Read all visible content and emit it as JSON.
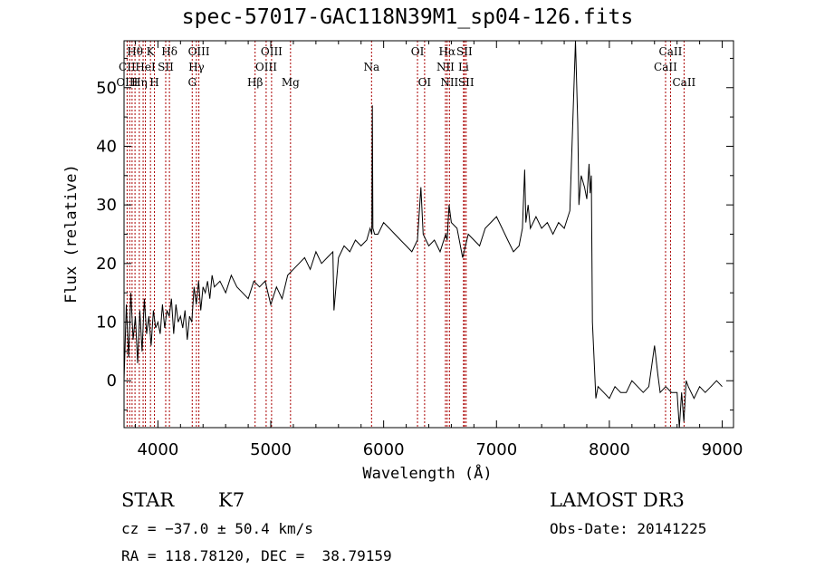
{
  "title": "spec-57017-GAC118N39M1_sp04-126.fits",
  "chart_data": {
    "type": "line",
    "xlabel": "Wavelength (Å)",
    "ylabel": "Flux (relative)",
    "xlim": [
      3700,
      9100
    ],
    "ylim": [
      -8,
      58
    ],
    "xticks": [
      4000,
      5000,
      6000,
      7000,
      8000,
      9000
    ],
    "yticks": [
      0,
      10,
      20,
      30,
      40,
      50
    ],
    "grid": false,
    "series": [
      {
        "x": [
          3700,
          3720,
          3740,
          3760,
          3780,
          3800,
          3820,
          3840,
          3860,
          3880,
          3900,
          3920,
          3940,
          3960,
          3980,
          4000,
          4020,
          4040,
          4060,
          4080,
          4100,
          4120,
          4140,
          4160,
          4180,
          4200,
          4220,
          4240,
          4260,
          4280,
          4300,
          4320,
          4340,
          4360,
          4380,
          4400,
          4420,
          4440,
          4460,
          4480,
          4500,
          4550,
          4600,
          4650,
          4700,
          4750,
          4800,
          4850,
          4900,
          4950,
          5000,
          5050,
          5100,
          5150,
          5200,
          5250,
          5300,
          5350,
          5400,
          5450,
          5500,
          5550,
          5560,
          5600,
          5650,
          5700,
          5750,
          5800,
          5850,
          5880,
          5895,
          5900,
          5905,
          5920,
          5950,
          6000,
          6050,
          6100,
          6150,
          6200,
          6250,
          6300,
          6330,
          6350,
          6400,
          6450,
          6500,
          6550,
          6563,
          6580,
          6600,
          6650,
          6700,
          6750,
          6800,
          6850,
          6900,
          6950,
          7000,
          7050,
          7100,
          7150,
          7200,
          7230,
          7250,
          7260,
          7280,
          7300,
          7350,
          7400,
          7450,
          7500,
          7550,
          7600,
          7650,
          7700,
          7720,
          7730,
          7750,
          7780,
          7800,
          7820,
          7830,
          7840,
          7850,
          7880,
          7900,
          7950,
          8000,
          8050,
          8100,
          8150,
          8200,
          8250,
          8300,
          8350,
          8400,
          8430,
          8450,
          8500,
          8550,
          8600,
          8620,
          8640,
          8660,
          8680,
          8700,
          8750,
          8800,
          8850,
          8900,
          8950,
          9000
        ],
        "values": [
          0,
          13,
          4,
          15,
          7,
          11,
          3,
          12,
          5,
          14,
          8,
          11,
          6,
          12,
          9,
          10,
          8,
          13,
          9,
          12,
          11,
          14,
          8,
          13,
          10,
          11,
          9,
          12,
          7,
          11,
          10,
          16,
          13,
          17,
          12,
          16,
          15,
          17,
          14,
          18,
          16,
          17,
          15,
          18,
          16,
          15,
          14,
          17,
          16,
          17,
          13,
          16,
          14,
          18,
          19,
          20,
          21,
          19,
          22,
          20,
          21,
          22,
          12,
          21,
          23,
          22,
          24,
          23,
          24,
          26,
          25,
          47,
          26,
          25,
          25,
          27,
          26,
          25,
          24,
          23,
          22,
          24,
          33,
          25,
          23,
          24,
          22,
          25,
          24,
          30,
          27,
          26,
          21,
          25,
          24,
          23,
          26,
          27,
          28,
          26,
          24,
          22,
          23,
          26,
          36,
          27,
          30,
          26,
          28,
          26,
          27,
          25,
          27,
          26,
          29,
          58,
          44,
          30,
          35,
          33,
          31,
          37,
          32,
          35,
          10,
          -3,
          -1,
          -2,
          -3,
          -1,
          -2,
          -2,
          0,
          -1,
          -2,
          -1,
          6,
          1,
          -2,
          -1,
          -2,
          -2,
          -8,
          -2,
          -7,
          0,
          -1,
          -3,
          -1,
          -2,
          -1,
          0,
          -1
        ]
      }
    ],
    "line_labels": [
      {
        "name": "Hθ",
        "x": 3797,
        "row": 1
      },
      {
        "name": "CII",
        "x": 3727,
        "row": 2
      },
      {
        "name": "OIII",
        "x": 3727,
        "row": 3
      },
      {
        "name": "K",
        "x": 3934,
        "row": 1
      },
      {
        "name": "HeI",
        "x": 3889,
        "row": 2
      },
      {
        "name": "Hη",
        "x": 3835,
        "row": 3
      },
      {
        "name": "SII",
        "x": 4069,
        "row": 2
      },
      {
        "name": "H",
        "x": 3969,
        "row": 3
      },
      {
        "name": "Hδ",
        "x": 4102,
        "row": 1
      },
      {
        "name": "OIII",
        "x": 4363,
        "row": 1
      },
      {
        "name": "Hγ",
        "x": 4341,
        "row": 2
      },
      {
        "name": "G",
        "x": 4304,
        "row": 3
      },
      {
        "name": "OIII",
        "x": 5007,
        "row": 1
      },
      {
        "name": "OIII",
        "x": 4959,
        "row": 2
      },
      {
        "name": "Hβ",
        "x": 4861,
        "row": 3
      },
      {
        "name": "Mg",
        "x": 5175,
        "row": 3
      },
      {
        "name": "Na",
        "x": 5893,
        "row": 2
      },
      {
        "name": "OI",
        "x": 6300,
        "row": 1
      },
      {
        "name": "OI",
        "x": 6363,
        "row": 3
      },
      {
        "name": "Hα",
        "x": 6563,
        "row": 1
      },
      {
        "name": "NII",
        "x": 6548,
        "row": 2
      },
      {
        "name": "NII",
        "x": 6583,
        "row": 3
      },
      {
        "name": "SII",
        "x": 6716,
        "row": 1
      },
      {
        "name": "Li",
        "x": 6708,
        "row": 2
      },
      {
        "name": "SII",
        "x": 6731,
        "row": 3
      },
      {
        "name": "CaII",
        "x": 8542,
        "row": 1
      },
      {
        "name": "CaII",
        "x": 8498,
        "row": 2
      },
      {
        "name": "CaII",
        "x": 8662,
        "row": 3
      }
    ],
    "line_markers_x": [
      3727,
      3750,
      3771,
      3797,
      3835,
      3869,
      3889,
      3934,
      3969,
      4069,
      4102,
      4304,
      4341,
      4363,
      4861,
      4959,
      5007,
      5175,
      5893,
      6300,
      6363,
      6548,
      6563,
      6583,
      6708,
      6716,
      6731,
      8498,
      8542,
      8662
    ]
  },
  "info": {
    "class": "STAR",
    "subclass": "K7",
    "survey": "LAMOST DR3",
    "cz": "cz = −37.0 ± 50.4 km/s",
    "obs_date": "Obs-Date: 20141225",
    "coords": "RA = 118.78120, DEC =  38.79159"
  },
  "colors": {
    "spectrum": "#000000",
    "marker_lines": "#aa0000"
  }
}
